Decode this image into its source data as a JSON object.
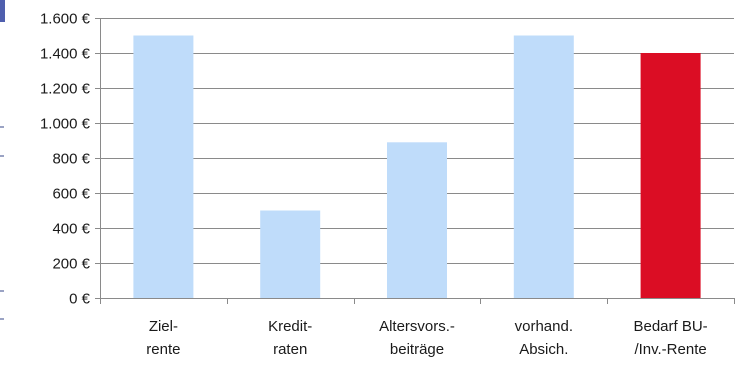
{
  "chart_data": {
    "type": "bar",
    "categories": [
      [
        "Ziel-",
        "rente"
      ],
      [
        "Kredit-",
        "raten"
      ],
      [
        "Altersvors.-",
        "beiträge"
      ],
      [
        "vorhand.",
        "Absich."
      ],
      [
        "Bedarf BU-",
        "/Inv.-Rente"
      ]
    ],
    "values": [
      1500,
      500,
      890,
      1500,
      1400
    ],
    "bar_colors": [
      "#bfdcfa",
      "#bfdcfa",
      "#bfdcfa",
      "#bfdcfa",
      "#db0d24"
    ],
    "ylim": [
      0,
      1600
    ],
    "y_ticks": [
      {
        "value": 0,
        "label": "0 €"
      },
      {
        "value": 200,
        "label": "200 €"
      },
      {
        "value": 400,
        "label": "400 €"
      },
      {
        "value": 600,
        "label": "600 €"
      },
      {
        "value": 800,
        "label": "800 €"
      },
      {
        "value": 1000,
        "label": "1.000 €"
      },
      {
        "value": 1200,
        "label": "1.200 €"
      },
      {
        "value": 1400,
        "label": "1.400 €"
      },
      {
        "value": 1600,
        "label": "1.600 €"
      }
    ],
    "grid": true,
    "gridline_color": "#8a8a8a",
    "axis_color": "#8a8a8a",
    "legend": "none",
    "title": "",
    "xlabel": "",
    "ylabel": ""
  }
}
